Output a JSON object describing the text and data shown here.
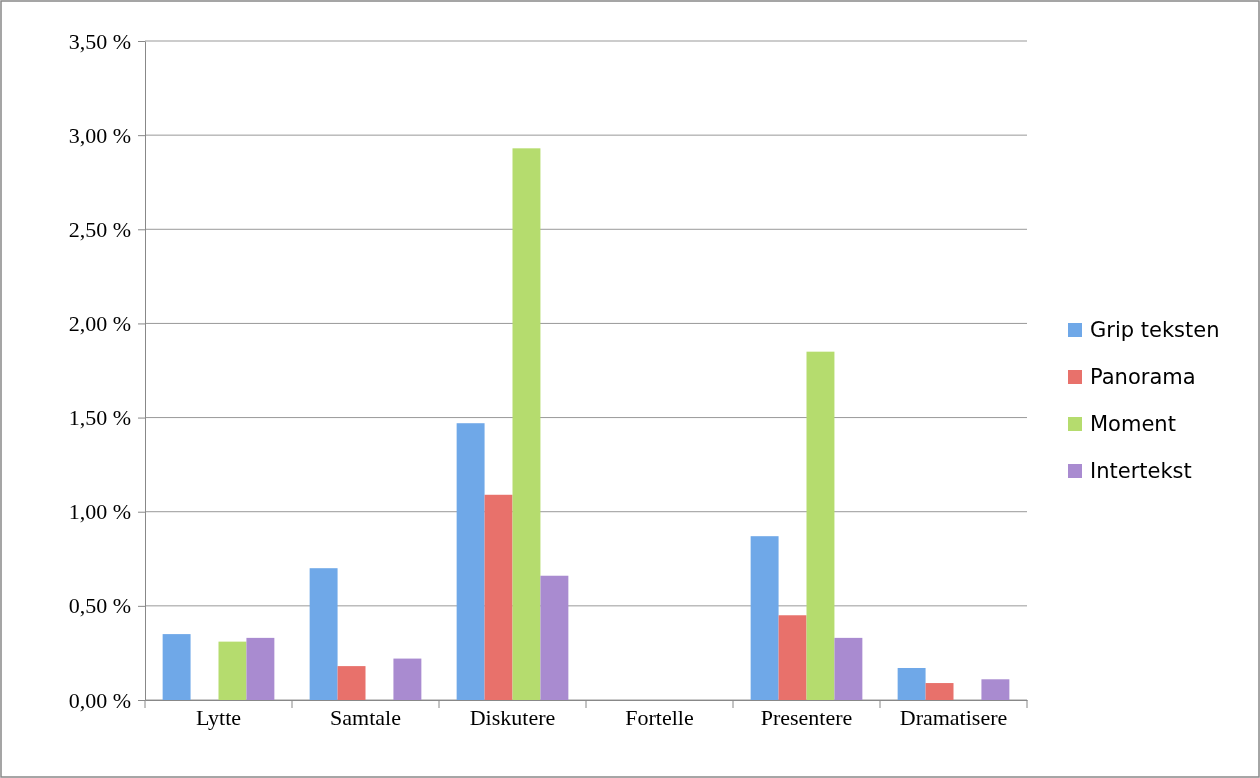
{
  "chart_data": {
    "type": "bar",
    "categories": [
      "Lytte",
      "Samtale",
      "Diskutere",
      "Fortelle",
      "Presentere",
      "Dramatisere"
    ],
    "series": [
      {
        "name": "Grip teksten",
        "color": "#6fa8e8",
        "values": [
          0.35,
          0.7,
          1.47,
          0,
          0.87,
          0.17
        ]
      },
      {
        "name": "Panorama",
        "color": "#e8716b",
        "values": [
          0,
          0.18,
          1.09,
          0,
          0.45,
          0.09
        ]
      },
      {
        "name": "Moment",
        "color": "#b5dc6e",
        "values": [
          0.31,
          0,
          2.93,
          0,
          1.85,
          0
        ]
      },
      {
        "name": "Intertekst",
        "color": "#a98bd0",
        "values": [
          0.33,
          0.22,
          0.66,
          0,
          0.33,
          0.11
        ]
      }
    ],
    "ylim": [
      0,
      3.5
    ],
    "yticks": [
      {
        "value": 0,
        "label": "0,00 %"
      },
      {
        "value": 0.5,
        "label": "0,50 %"
      },
      {
        "value": 1,
        "label": "1,00 %"
      },
      {
        "value": 1.5,
        "label": "1,50 %"
      },
      {
        "value": 2,
        "label": "2,00 %"
      },
      {
        "value": 2.5,
        "label": "2,50 %"
      },
      {
        "value": 3,
        "label": "3,00 %"
      },
      {
        "value": 3.5,
        "label": "3,50 %"
      }
    ],
    "grid": "y",
    "legend": "right"
  }
}
